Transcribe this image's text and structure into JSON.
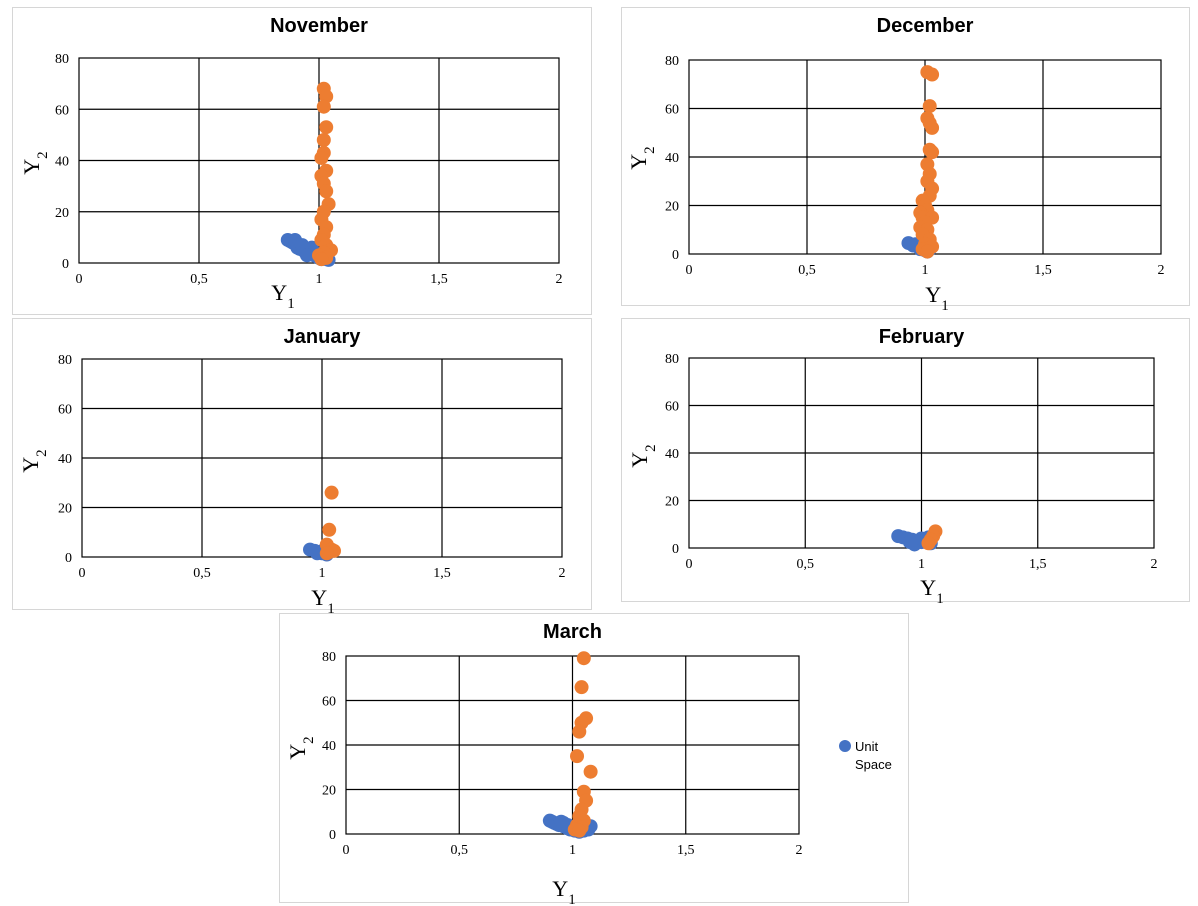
{
  "colors": {
    "unit_space": "#4472C4",
    "signal": "#ED7D31",
    "grid": "#000000"
  },
  "chart_data": [
    {
      "type": "scatter",
      "title": "November",
      "xlabel": "Y",
      "xlabel_sub": "1",
      "ylabel": "Y",
      "ylabel_sub": "2",
      "xlim": [
        0,
        2
      ],
      "ylim": [
        0,
        80
      ],
      "x_ticks": [
        "0",
        "0,5",
        "1",
        "1,5",
        "2"
      ],
      "y_ticks": [
        "0",
        "20",
        "40",
        "60",
        "80"
      ],
      "series": [
        {
          "name": "Unit Space",
          "color": "#4472C4",
          "points": [
            [
              0.87,
              9
            ],
            [
              0.88,
              8.5
            ],
            [
              0.89,
              8
            ],
            [
              0.9,
              7.5
            ],
            [
              0.9,
              9
            ],
            [
              0.91,
              6
            ],
            [
              0.92,
              5.5
            ],
            [
              0.93,
              7
            ],
            [
              0.94,
              4.5
            ],
            [
              0.95,
              5
            ],
            [
              0.96,
              3.5
            ],
            [
              0.97,
              4
            ],
            [
              0.98,
              3
            ],
            [
              0.99,
              2.5
            ],
            [
              1.0,
              2
            ],
            [
              1.01,
              1.5
            ],
            [
              1.02,
              2
            ],
            [
              1.03,
              1.5
            ],
            [
              1.0,
              3.5
            ],
            [
              0.97,
              6
            ],
            [
              0.95,
              3
            ],
            [
              1.04,
              1.2
            ]
          ]
        },
        {
          "color": "#ED7D31",
          "points": [
            [
              1.02,
              68
            ],
            [
              1.03,
              65
            ],
            [
              1.02,
              61
            ],
            [
              1.03,
              53
            ],
            [
              1.02,
              48
            ],
            [
              1.02,
              43
            ],
            [
              1.01,
              41
            ],
            [
              1.03,
              36
            ],
            [
              1.01,
              34
            ],
            [
              1.02,
              31
            ],
            [
              1.03,
              28
            ],
            [
              1.04,
              23
            ],
            [
              1.02,
              20
            ],
            [
              1.01,
              17
            ],
            [
              1.03,
              14
            ],
            [
              1.02,
              11
            ],
            [
              1.01,
              9
            ],
            [
              1.03,
              7
            ],
            [
              1.05,
              5
            ],
            [
              1.02,
              4
            ],
            [
              1.0,
              3
            ],
            [
              1.03,
              2
            ],
            [
              1.01,
              1.5
            ]
          ]
        }
      ]
    },
    {
      "type": "scatter",
      "title": "December",
      "xlabel": "Y",
      "xlabel_sub": "1",
      "ylabel": "Y",
      "ylabel_sub": "2",
      "xlim": [
        0,
        2
      ],
      "ylim": [
        0,
        80
      ],
      "x_ticks": [
        "0",
        "0,5",
        "1",
        "1,5",
        "2"
      ],
      "y_ticks": [
        "0",
        "20",
        "40",
        "60",
        "80"
      ],
      "series": [
        {
          "name": "Unit Space",
          "color": "#4472C4",
          "points": [
            [
              0.93,
              4.5
            ],
            [
              0.95,
              3.5
            ],
            [
              0.97,
              3
            ],
            [
              0.98,
              2
            ],
            [
              1.0,
              1.5
            ],
            [
              1.01,
              1
            ],
            [
              1.02,
              2
            ],
            [
              1.0,
              3
            ],
            [
              0.96,
              4
            ]
          ]
        },
        {
          "color": "#ED7D31",
          "points": [
            [
              1.01,
              75
            ],
            [
              1.03,
              74
            ],
            [
              1.02,
              61
            ],
            [
              1.01,
              56
            ],
            [
              1.02,
              54
            ],
            [
              1.03,
              52
            ],
            [
              1.02,
              43
            ],
            [
              1.03,
              42
            ],
            [
              1.01,
              37
            ],
            [
              1.02,
              33
            ],
            [
              1.01,
              30
            ],
            [
              1.03,
              27
            ],
            [
              1.02,
              24
            ],
            [
              0.99,
              22
            ],
            [
              1.0,
              20
            ],
            [
              1.01,
              18
            ],
            [
              0.98,
              17
            ],
            [
              0.99,
              15
            ],
            [
              1.03,
              15
            ],
            [
              1.0,
              13
            ],
            [
              0.98,
              11
            ],
            [
              1.01,
              10
            ],
            [
              0.99,
              8
            ],
            [
              1.02,
              6
            ],
            [
              1.0,
              4
            ],
            [
              1.03,
              3
            ],
            [
              0.99,
              2
            ],
            [
              1.01,
              1
            ]
          ]
        }
      ]
    },
    {
      "type": "scatter",
      "title": "January",
      "xlabel": "Y",
      "xlabel_sub": "1",
      "ylabel": "Y",
      "ylabel_sub": "2",
      "xlim": [
        0,
        2
      ],
      "ylim": [
        0,
        80
      ],
      "x_ticks": [
        "0",
        "0,5",
        "1",
        "1,5",
        "2"
      ],
      "y_ticks": [
        "0",
        "20",
        "40",
        "60",
        "80"
      ],
      "series": [
        {
          "name": "Unit Space",
          "color": "#4472C4",
          "points": [
            [
              0.95,
              3
            ],
            [
              0.97,
              2.5
            ],
            [
              0.99,
              2
            ],
            [
              1.0,
              1.5
            ],
            [
              1.01,
              3
            ],
            [
              1.02,
              1
            ],
            [
              0.98,
              1.5
            ]
          ]
        },
        {
          "color": "#ED7D31",
          "points": [
            [
              1.04,
              26
            ],
            [
              1.03,
              11
            ],
            [
              1.02,
              5
            ],
            [
              1.04,
              3
            ],
            [
              1.03,
              2
            ],
            [
              1.05,
              2.5
            ],
            [
              1.02,
              1.5
            ]
          ]
        }
      ]
    },
    {
      "type": "scatter",
      "title": "February",
      "xlabel": "Y",
      "xlabel_sub": "1",
      "ylabel": "Y",
      "ylabel_sub": "2",
      "xlim": [
        0,
        2
      ],
      "ylim": [
        0,
        80
      ],
      "x_ticks": [
        "0",
        "0,5",
        "1",
        "1,5",
        "2"
      ],
      "y_ticks": [
        "0",
        "20",
        "40",
        "60",
        "80"
      ],
      "series": [
        {
          "name": "Unit Space",
          "color": "#4472C4",
          "points": [
            [
              0.9,
              5
            ],
            [
              0.92,
              4.5
            ],
            [
              0.94,
              4
            ],
            [
              0.96,
              3.5
            ],
            [
              0.98,
              3
            ],
            [
              1.0,
              2.5
            ],
            [
              1.02,
              3
            ],
            [
              1.04,
              2
            ],
            [
              0.97,
              1.5
            ],
            [
              1.0,
              4
            ],
            [
              1.03,
              4.5
            ],
            [
              0.95,
              2.5
            ]
          ]
        },
        {
          "color": "#ED7D31",
          "points": [
            [
              1.06,
              7
            ],
            [
              1.05,
              5
            ],
            [
              1.04,
              3.5
            ],
            [
              1.03,
              2
            ]
          ]
        }
      ]
    },
    {
      "type": "scatter",
      "title": "March",
      "xlabel": "Y",
      "xlabel_sub": "1",
      "ylabel": "Y",
      "ylabel_sub": "2",
      "xlim": [
        0,
        2
      ],
      "ylim": [
        0,
        80
      ],
      "x_ticks": [
        "0",
        "0,5",
        "1",
        "1,5",
        "2"
      ],
      "y_ticks": [
        "0",
        "20",
        "40",
        "60",
        "80"
      ],
      "legend": {
        "label": "Unit Space",
        "placement": "right"
      },
      "series": [
        {
          "name": "Unit Space",
          "color": "#4472C4",
          "points": [
            [
              0.9,
              6
            ],
            [
              0.91,
              5.5
            ],
            [
              0.92,
              5
            ],
            [
              0.93,
              4.5
            ],
            [
              0.94,
              4
            ],
            [
              0.95,
              5.5
            ],
            [
              0.96,
              3.5
            ],
            [
              0.97,
              3
            ],
            [
              0.98,
              2.5
            ],
            [
              0.99,
              2
            ],
            [
              1.0,
              3
            ],
            [
              1.01,
              1.5
            ],
            [
              1.02,
              2
            ],
            [
              1.03,
              1
            ],
            [
              1.04,
              2.5
            ],
            [
              1.06,
              3
            ],
            [
              1.07,
              2
            ],
            [
              1.08,
              3.5
            ],
            [
              1.05,
              1.5
            ],
            [
              0.96,
              5
            ],
            [
              0.98,
              4
            ]
          ]
        },
        {
          "color": "#ED7D31",
          "points": [
            [
              1.05,
              79
            ],
            [
              1.04,
              66
            ],
            [
              1.06,
              52
            ],
            [
              1.04,
              50
            ],
            [
              1.03,
              46
            ],
            [
              1.02,
              35
            ],
            [
              1.08,
              28
            ],
            [
              1.05,
              19
            ],
            [
              1.06,
              15
            ],
            [
              1.04,
              11
            ],
            [
              1.03,
              8
            ],
            [
              1.05,
              6
            ],
            [
              1.02,
              4
            ],
            [
              1.04,
              3
            ],
            [
              1.01,
              2
            ],
            [
              1.03,
              1.5
            ]
          ]
        }
      ]
    }
  ]
}
